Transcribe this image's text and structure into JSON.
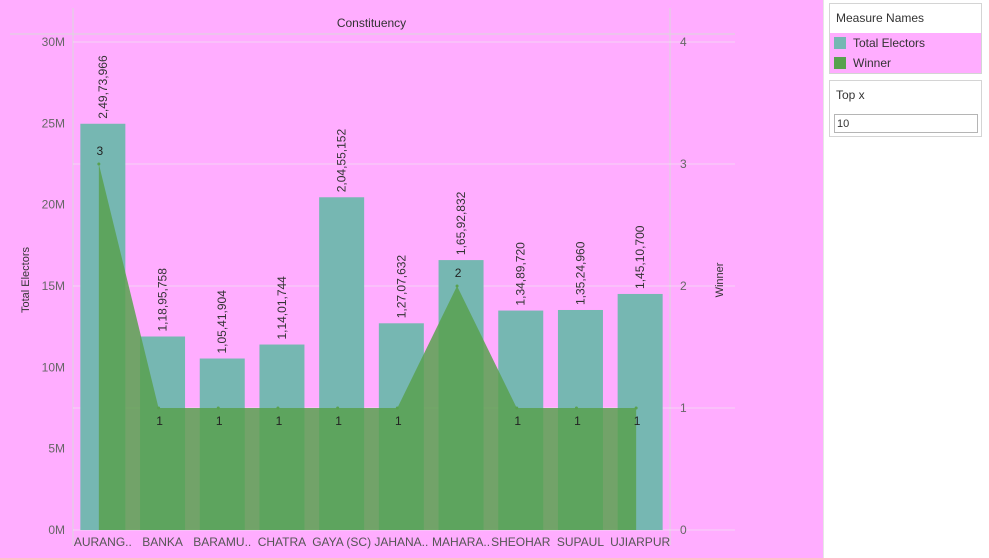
{
  "chart_data": {
    "type": "bar",
    "header": "Constituency",
    "categories": [
      "AURANG..",
      "BANKA",
      "BARAMU..",
      "CHATRA",
      "GAYA (SC)",
      "JAHANA..",
      "MAHARA..",
      "SHEOHAR",
      "SUPAUL",
      "UJIARPUR"
    ],
    "series": [
      {
        "name": "Total Electors",
        "axis": "left",
        "color": "#76b7b2",
        "values": [
          24973966,
          11895758,
          10541904,
          11401744,
          20455152,
          12707632,
          16592832,
          13489720,
          13524960,
          14510700
        ],
        "labels": [
          "2,49,73,966",
          "1,18,95,758",
          "1,05,41,904",
          "1,14,01,744",
          "2,04,55,152",
          "1,27,07,632",
          "1,65,92,832",
          "1,34,89,720",
          "1,35,24,960",
          "1,45,10,700"
        ]
      },
      {
        "name": "Winner",
        "axis": "right",
        "color": "#59a14f",
        "values": [
          3,
          1,
          1,
          1,
          1,
          1,
          2,
          1,
          1,
          1
        ],
        "labels": [
          "3",
          "1",
          "1",
          "1",
          "1",
          "1",
          "2",
          "1",
          "1",
          "1"
        ]
      }
    ],
    "ylabel": "Total Electors",
    "y2label": "Winner",
    "ylim": [
      0,
      30000000
    ],
    "y2lim": [
      0,
      4
    ],
    "yticks": [
      "0M",
      "5M",
      "10M",
      "15M",
      "20M",
      "25M",
      "30M"
    ],
    "y2ticks": [
      "0",
      "1",
      "2",
      "3",
      "4"
    ],
    "grid": true
  },
  "legend": {
    "title": "Measure Names",
    "items": [
      {
        "label": "Total Electors",
        "color": "#76b7b2"
      },
      {
        "label": "Winner",
        "color": "#59a14f"
      }
    ]
  },
  "topx": {
    "title": "Top x",
    "value": "10"
  }
}
